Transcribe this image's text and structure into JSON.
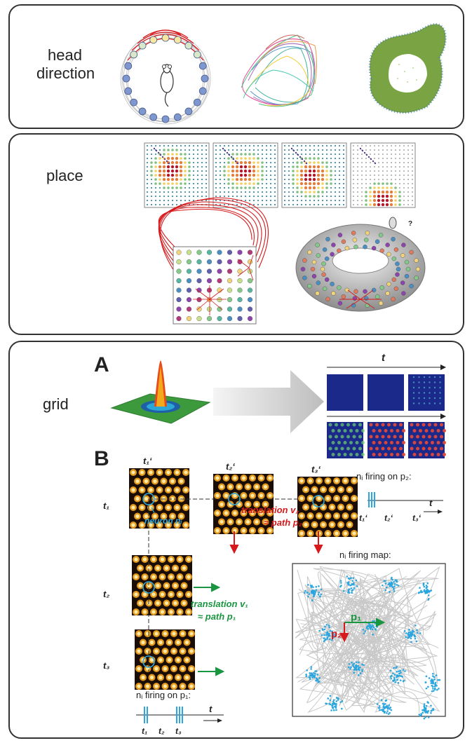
{
  "panels": {
    "head_direction": {
      "label_line1": "head",
      "label_line2": "direction"
    },
    "place": {
      "label": "place",
      "question_mark": "?"
    },
    "grid": {
      "label": "grid",
      "section_a": "A",
      "section_b": "B",
      "time_label": "t",
      "tprime_1": "t₁‘",
      "tprime_2": "t₂‘",
      "tprime_3": "t₃‘",
      "t_1": "t₁",
      "t_2": "t₂",
      "t_3": "t₃",
      "neuron_label": "neuron nᵢ",
      "translation_v2_line1": "translation v₂",
      "translation_v2_line2": "≈ path p₂",
      "translation_v1_line1": "translation v₁",
      "translation_v1_line2": "≈ path p₁",
      "firing_p2": "nᵢ firing on p₂:",
      "firing_p1": "nᵢ firing on p₁:",
      "firing_map": "nᵢ firing map:",
      "p1_label": "p₁",
      "p2_label": "p₂"
    }
  },
  "colors": {
    "red": "#d7191c",
    "green": "#1a9641",
    "blue": "#2ba6de"
  }
}
